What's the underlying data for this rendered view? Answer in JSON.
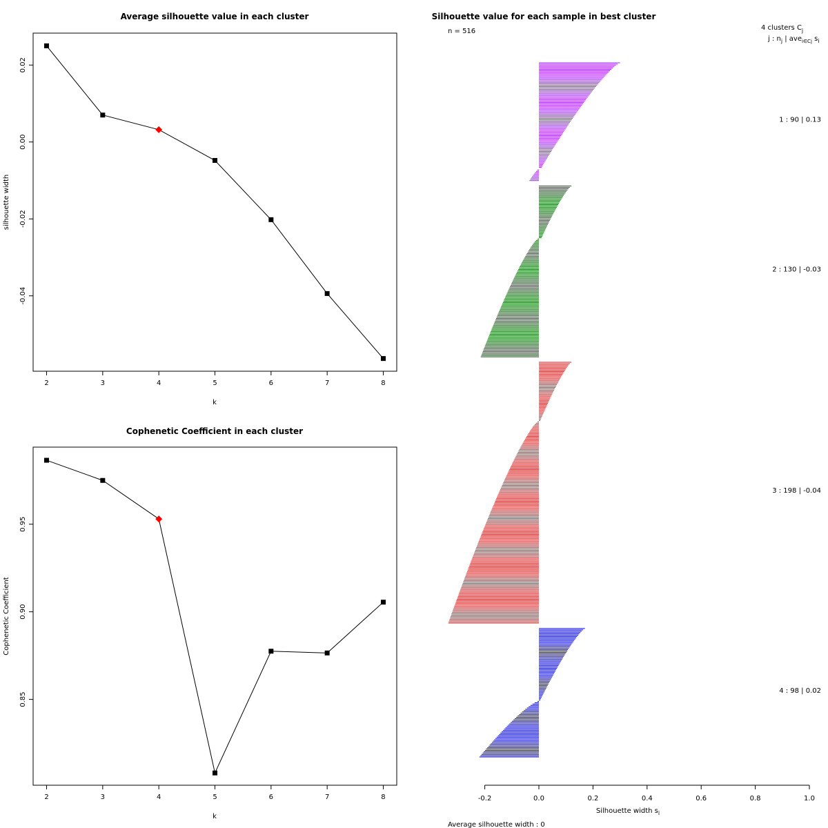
{
  "chart_data": [
    {
      "type": "line",
      "title": "Average silhouette value in each cluster",
      "xlabel": "k",
      "ylabel": "silhouette width",
      "x": [
        2,
        3,
        4,
        5,
        6,
        7,
        8
      ],
      "y": [
        0.025,
        0.007,
        0.0032,
        -0.0048,
        -0.0202,
        -0.0394,
        -0.0563
      ],
      "highlight_index": 2,
      "highlight_color": "#ff0000",
      "xticks": [
        "2",
        "3",
        "4",
        "5",
        "6",
        "7",
        "8"
      ],
      "yticks": [
        {
          "value": 0.02,
          "label": "0.02"
        },
        {
          "value": 0.0,
          "label": "0.00"
        },
        {
          "value": -0.02,
          "label": "-0.02"
        },
        {
          "value": -0.04,
          "label": "-0.04"
        }
      ],
      "xlim": [
        1.76,
        8.24
      ],
      "ylim": [
        -0.0596,
        0.0283
      ]
    },
    {
      "type": "line",
      "title": "Cophenetic Coefficient in each cluster",
      "xlabel": "k",
      "ylabel": "Cophenetic Coefficient",
      "x": [
        2,
        3,
        4,
        5,
        6,
        7,
        8
      ],
      "y": [
        0.9865,
        0.975,
        0.953,
        0.808,
        0.8775,
        0.8765,
        0.9055
      ],
      "highlight_index": 2,
      "highlight_color": "#ff0000",
      "xticks": [
        "2",
        "3",
        "4",
        "5",
        "6",
        "7",
        "8"
      ],
      "yticks": [
        {
          "value": 0.95,
          "label": "0.95"
        },
        {
          "value": 0.9,
          "label": "0.90"
        },
        {
          "value": 0.85,
          "label": "0.85"
        }
      ],
      "xlim": [
        1.76,
        8.24
      ],
      "ylim": [
        0.801,
        0.994
      ]
    },
    {
      "type": "bar",
      "orientation": "horizontal",
      "title": "Silhouette value for each sample in best cluster",
      "n_label": "n = 516",
      "header_line1": "4  clusters  C",
      "header_line1_sub": "j",
      "header_line2": "j :  n",
      "header_line2_sub": "j",
      "header_line2_rest": " | ave",
      "header_line2_sub2": "i∈Cj",
      "header_line2_tail": "  s",
      "header_line2_tail_sub": "i",
      "xlabel": "Silhouette width  s",
      "xlabel_sub": "i",
      "footer": "Average silhouette width :  0",
      "xlim": [
        -0.2,
        1.0
      ],
      "xticks": [
        {
          "value": -0.2,
          "label": "-0.2"
        },
        {
          "value": 0.0,
          "label": "0.0"
        },
        {
          "value": 0.2,
          "label": "0.2"
        },
        {
          "value": 0.4,
          "label": "0.4"
        },
        {
          "value": 0.6,
          "label": "0.6"
        },
        {
          "value": 0.8,
          "label": "0.8"
        },
        {
          "value": 1.0,
          "label": "1.0"
        }
      ],
      "clusters": [
        {
          "id": 1,
          "label": "1 :   90  |  0.13",
          "color": "#a020f0",
          "segments": [
            {
              "count": 80,
              "from": 0.3,
              "to": 0.01
            },
            {
              "count": 10,
              "from": 0.0,
              "to": -0.035
            }
          ]
        },
        {
          "id": 2,
          "label": "2 :   130  |  -0.03",
          "color": "#006400",
          "segments": [
            {
              "count": 40,
              "from": 0.12,
              "to": 0.01
            },
            {
              "count": 90,
              "from": -0.005,
              "to": -0.215
            }
          ]
        },
        {
          "id": 3,
          "label": "3 :   198  |  -0.04",
          "color": "#cd2626",
          "segments": [
            {
              "count": 45,
              "from": 0.12,
              "to": 0.005
            },
            {
              "count": 153,
              "from": -0.005,
              "to": -0.335
            }
          ]
        },
        {
          "id": 4,
          "label": "4 :   98  |  0.02",
          "color": "#0000cd",
          "segments": [
            {
              "count": 55,
              "from": 0.17,
              "to": 0.005
            },
            {
              "count": 43,
              "from": -0.005,
              "to": -0.22
            }
          ]
        }
      ]
    }
  ]
}
